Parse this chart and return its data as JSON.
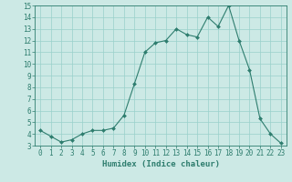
{
  "x": [
    0,
    1,
    2,
    3,
    4,
    5,
    6,
    7,
    8,
    9,
    10,
    11,
    12,
    13,
    14,
    15,
    16,
    17,
    18,
    19,
    20,
    21,
    22,
    23
  ],
  "y": [
    4.3,
    3.8,
    3.3,
    3.5,
    4.0,
    4.3,
    4.3,
    4.5,
    5.6,
    8.3,
    11.0,
    11.8,
    12.0,
    13.0,
    12.5,
    12.3,
    14.0,
    13.2,
    15.0,
    12.0,
    9.5,
    5.3,
    4.0,
    3.2
  ],
  "line_color": "#2e7d6e",
  "marker": "D",
  "marker_size": 2.0,
  "bg_color": "#cce9e5",
  "grid_color": "#99d0ca",
  "xlabel": "Humidex (Indice chaleur)",
  "ylabel": "",
  "xlim": [
    -0.5,
    23.5
  ],
  "ylim": [
    3,
    15
  ],
  "yticks": [
    3,
    4,
    5,
    6,
    7,
    8,
    9,
    10,
    11,
    12,
    13,
    14,
    15
  ],
  "xticks": [
    0,
    1,
    2,
    3,
    4,
    5,
    6,
    7,
    8,
    9,
    10,
    11,
    12,
    13,
    14,
    15,
    16,
    17,
    18,
    19,
    20,
    21,
    22,
    23
  ],
  "axis_color": "#2e7d6e",
  "tick_color": "#2e7d6e",
  "label_fontsize": 6.5,
  "tick_fontsize": 5.5,
  "linewidth": 0.8
}
